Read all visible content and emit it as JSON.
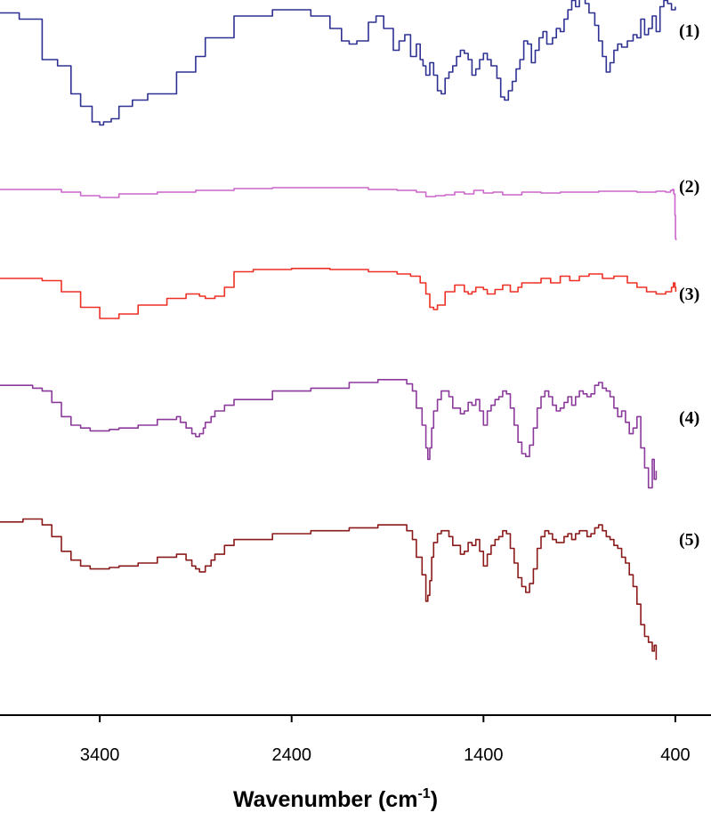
{
  "chart_data": {
    "type": "line",
    "xlabel_main": "Wavenumber (cm",
    "xlabel_sup": "-1",
    "xlabel_close": ")",
    "xlim": [
      3920,
      395
    ],
    "x_reversed": true,
    "xticks": [
      3400,
      2400,
      1400,
      400
    ],
    "ylabel": "",
    "grid": false,
    "colors": {
      "axis": "#000000",
      "s1": "#2e3192",
      "s2": "#cc66cc",
      "s3": "#ee3024",
      "s4": "#8b3a9b",
      "s5": "#8b1a1a"
    },
    "series": [
      {
        "name": "(1)",
        "color": "#2e3192",
        "x": [
          3920,
          3820,
          3700,
          3620,
          3550,
          3500,
          3440,
          3400,
          3380,
          3340,
          3300,
          3230,
          3150,
          3000,
          2900,
          2850,
          2700,
          2500,
          2300,
          2200,
          2140,
          2100,
          2060,
          2000,
          1960,
          1920,
          1870,
          1840,
          1810,
          1780,
          1750,
          1730,
          1715,
          1700,
          1680,
          1660,
          1640,
          1620,
          1600,
          1580,
          1560,
          1540,
          1520,
          1500,
          1480,
          1460,
          1440,
          1420,
          1400,
          1380,
          1360,
          1330,
          1310,
          1290,
          1270,
          1250,
          1230,
          1210,
          1190,
          1170,
          1150,
          1130,
          1110,
          1090,
          1070,
          1040,
          1020,
          1000,
          980,
          960,
          940,
          920,
          900,
          870,
          850,
          820,
          800,
          780,
          760,
          740,
          720,
          700,
          680,
          650,
          620,
          600,
          580,
          560,
          540,
          520,
          500,
          480,
          460,
          440,
          420,
          400
        ],
        "y": [
          4.5,
          4.3,
          3.0,
          2.8,
          1.9,
          1.5,
          1.0,
          0.9,
          1.0,
          1.1,
          1.5,
          1.7,
          1.9,
          2.6,
          3.1,
          3.7,
          4.4,
          4.6,
          4.4,
          4.0,
          3.6,
          3.5,
          3.6,
          4.2,
          4.4,
          4.0,
          3.3,
          3.6,
          3.8,
          3.1,
          3.5,
          3.0,
          2.8,
          2.5,
          2.9,
          2.5,
          2.0,
          1.9,
          2.4,
          2.6,
          2.8,
          3.1,
          3.3,
          3.2,
          3.0,
          2.5,
          2.7,
          3.0,
          3.2,
          3.0,
          2.8,
          2.4,
          1.8,
          1.7,
          2.0,
          2.3,
          2.7,
          3.0,
          3.6,
          3.5,
          2.9,
          3.3,
          3.7,
          3.9,
          3.5,
          3.7,
          4.0,
          3.9,
          4.3,
          4.6,
          4.9,
          4.7,
          5.0,
          4.8,
          4.5,
          4.1,
          3.6,
          3.1,
          2.6,
          2.9,
          3.3,
          3.5,
          3.4,
          3.6,
          3.8,
          3.7,
          4.3,
          3.8,
          4.0,
          4.4,
          3.9,
          4.7,
          4.9,
          4.8,
          4.6,
          4.7
        ]
      },
      {
        "name": "(2)",
        "color": "#cc66cc",
        "x": [
          3920,
          3700,
          3600,
          3500,
          3400,
          3300,
          3100,
          2900,
          2700,
          2500,
          2200,
          2000,
          1850,
          1750,
          1700,
          1650,
          1600,
          1550,
          1500,
          1450,
          1400,
          1350,
          1300,
          1200,
          1100,
          1000,
          800,
          600,
          500,
          450,
          425,
          415,
          408,
          402,
          399,
          397
        ],
        "y": [
          0.45,
          0.45,
          0.3,
          0.1,
          0.0,
          0.2,
          0.3,
          0.4,
          0.5,
          0.55,
          0.55,
          0.45,
          0.4,
          0.3,
          0.05,
          0.1,
          0.15,
          0.3,
          0.2,
          0.4,
          0.25,
          0.3,
          0.15,
          0.3,
          0.25,
          0.3,
          0.35,
          0.3,
          0.35,
          0.3,
          0.4,
          0.45,
          0.2,
          -1.0,
          -2.3,
          -2.4
        ]
      },
      {
        "name": "(3)",
        "color": "#ee3024",
        "x": [
          3920,
          3700,
          3600,
          3500,
          3400,
          3300,
          3200,
          3050,
          2950,
          2880,
          2850,
          2800,
          2750,
          2700,
          2600,
          2400,
          2200,
          2000,
          1850,
          1780,
          1730,
          1700,
          1680,
          1660,
          1640,
          1600,
          1550,
          1500,
          1480,
          1460,
          1440,
          1400,
          1380,
          1340,
          1300,
          1260,
          1220,
          1200,
          1100,
          1050,
          1000,
          950,
          900,
          850,
          780,
          720,
          650,
          600,
          550,
          500,
          450,
          420,
          410,
          402,
          398
        ],
        "y": [
          2.2,
          2.1,
          1.6,
          0.9,
          0.4,
          0.6,
          1.0,
          1.3,
          1.5,
          1.4,
          1.3,
          1.4,
          1.8,
          2.5,
          2.6,
          2.65,
          2.6,
          2.5,
          2.4,
          2.3,
          2.0,
          1.5,
          0.9,
          0.8,
          1.0,
          1.6,
          1.9,
          1.6,
          1.5,
          1.6,
          1.8,
          1.7,
          1.5,
          1.7,
          1.9,
          1.6,
          1.8,
          2.0,
          2.2,
          2.0,
          2.3,
          2.1,
          2.3,
          2.4,
          2.2,
          2.3,
          2.0,
          1.8,
          1.6,
          1.5,
          1.6,
          1.8,
          2.0,
          1.8,
          1.6
        ]
      },
      {
        "name": "(4)",
        "color": "#8b3a9b",
        "x": [
          3920,
          3750,
          3700,
          3650,
          3600,
          3550,
          3500,
          3450,
          3400,
          3350,
          3300,
          3200,
          3100,
          3000,
          2980,
          2950,
          2920,
          2900,
          2880,
          2860,
          2850,
          2820,
          2800,
          2750,
          2700,
          2500,
          2300,
          2100,
          1950,
          1850,
          1800,
          1770,
          1750,
          1720,
          1700,
          1690,
          1680,
          1670,
          1660,
          1640,
          1620,
          1580,
          1560,
          1520,
          1500,
          1480,
          1460,
          1440,
          1420,
          1400,
          1380,
          1360,
          1340,
          1320,
          1300,
          1280,
          1260,
          1240,
          1220,
          1200,
          1180,
          1160,
          1140,
          1120,
          1100,
          1080,
          1060,
          1040,
          1020,
          1000,
          980,
          960,
          940,
          920,
          900,
          880,
          860,
          840,
          820,
          800,
          780,
          760,
          740,
          720,
          700,
          680,
          660,
          640,
          620,
          600,
          580,
          560,
          540,
          520,
          510,
          500
        ],
        "y": [
          4.4,
          4.3,
          4.2,
          3.8,
          3.3,
          3.0,
          2.9,
          2.8,
          2.8,
          2.85,
          2.9,
          3.0,
          3.2,
          3.3,
          3.1,
          2.9,
          2.7,
          2.6,
          2.7,
          2.9,
          3.1,
          3.3,
          3.5,
          3.7,
          3.9,
          4.2,
          4.3,
          4.5,
          4.6,
          4.6,
          4.45,
          4.2,
          3.6,
          3.0,
          2.2,
          1.8,
          2.2,
          2.9,
          3.5,
          3.9,
          4.2,
          4.0,
          3.6,
          3.4,
          3.5,
          3.8,
          3.7,
          3.9,
          3.5,
          3.0,
          3.5,
          3.7,
          3.9,
          4.0,
          4.2,
          4.1,
          3.6,
          3.0,
          2.4,
          2.0,
          1.9,
          2.3,
          2.9,
          3.6,
          4.0,
          4.2,
          4.0,
          3.7,
          3.5,
          3.6,
          3.8,
          4.0,
          3.7,
          4.0,
          4.2,
          4.1,
          4.0,
          4.1,
          4.4,
          4.5,
          4.3,
          4.2,
          4.0,
          3.6,
          3.3,
          3.5,
          3.1,
          2.7,
          2.9,
          3.3,
          2.2,
          1.5,
          0.8,
          1.8,
          1.1,
          1.4
        ]
      },
      {
        "name": "(5)",
        "color": "#8b1a1a",
        "x": [
          3920,
          3800,
          3700,
          3650,
          3600,
          3550,
          3500,
          3450,
          3400,
          3350,
          3300,
          3200,
          3100,
          3000,
          2950,
          2920,
          2900,
          2880,
          2850,
          2820,
          2800,
          2750,
          2700,
          2500,
          2300,
          2100,
          1950,
          1850,
          1800,
          1770,
          1750,
          1720,
          1700,
          1690,
          1680,
          1670,
          1660,
          1640,
          1620,
          1580,
          1560,
          1520,
          1500,
          1480,
          1460,
          1440,
          1420,
          1400,
          1380,
          1360,
          1340,
          1320,
          1300,
          1280,
          1260,
          1240,
          1220,
          1200,
          1180,
          1160,
          1140,
          1120,
          1100,
          1080,
          1060,
          1040,
          1020,
          1000,
          980,
          960,
          940,
          920,
          900,
          880,
          860,
          840,
          820,
          800,
          780,
          760,
          740,
          720,
          700,
          680,
          660,
          640,
          620,
          600,
          580,
          560,
          540,
          520,
          510,
          500
        ],
        "y": [
          4.4,
          4.5,
          4.3,
          3.9,
          3.4,
          3.1,
          2.9,
          2.8,
          2.8,
          2.85,
          2.9,
          3.0,
          3.2,
          3.3,
          3.1,
          2.9,
          2.8,
          2.7,
          2.9,
          3.1,
          3.3,
          3.6,
          3.8,
          4.0,
          4.1,
          4.2,
          4.3,
          4.3,
          4.1,
          3.8,
          3.2,
          2.6,
          1.7,
          1.9,
          2.4,
          3.2,
          3.7,
          4.0,
          4.1,
          3.9,
          3.6,
          3.3,
          3.4,
          3.7,
          3.6,
          3.8,
          3.4,
          2.9,
          3.3,
          3.6,
          3.8,
          3.9,
          4.1,
          4.0,
          3.5,
          3.0,
          2.5,
          2.2,
          2.0,
          2.3,
          2.8,
          3.5,
          3.9,
          4.1,
          4.0,
          3.8,
          3.7,
          3.7,
          3.9,
          4.0,
          3.8,
          4.0,
          4.1,
          4.1,
          3.9,
          4.0,
          4.2,
          4.3,
          4.1,
          3.9,
          3.8,
          3.6,
          3.5,
          3.2,
          3.0,
          2.6,
          2.2,
          1.6,
          0.9,
          0.5,
          0.3,
          0.0,
          0.2,
          -0.3
        ]
      }
    ]
  }
}
